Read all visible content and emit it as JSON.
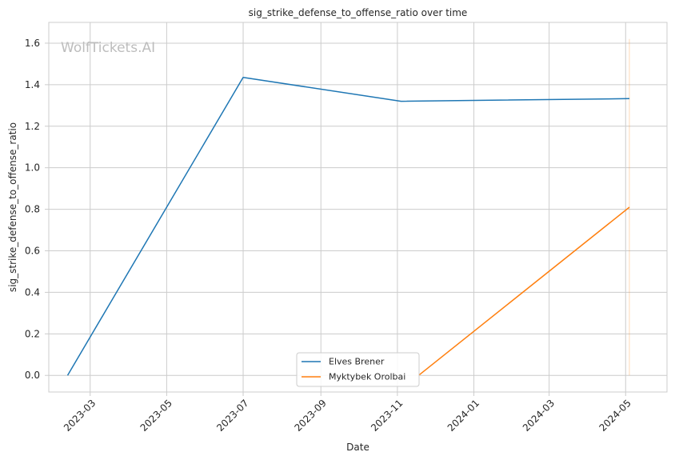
{
  "chart_data": {
    "type": "line",
    "title": "sig_strike_defense_to_offense_ratio over time",
    "xlabel": "Date",
    "ylabel": "sig_strike_defense_to_offense_ratio",
    "watermark": "WolfTickets.AI",
    "x_ticks": [
      "2023-03",
      "2023-05",
      "2023-07",
      "2023-09",
      "2023-11",
      "2024-01",
      "2024-03",
      "2024-05"
    ],
    "y_ticks": [
      "0.0",
      "0.2",
      "0.4",
      "0.6",
      "0.8",
      "1.0",
      "1.2",
      "1.4",
      "1.6"
    ],
    "xlim": [
      "2023-01-27",
      "2024-06-03"
    ],
    "ylim": [
      -0.08,
      1.7
    ],
    "grid": true,
    "legend_position": "bottom-center",
    "series": [
      {
        "name": "Elves Brener",
        "color": "#1f77b4",
        "points": [
          {
            "date": "2023-02-11",
            "value": 0.0
          },
          {
            "date": "2023-07-01",
            "value": 1.435
          },
          {
            "date": "2023-11-04",
            "value": 1.32
          },
          {
            "date": "2024-05-04",
            "value": 1.333
          }
        ]
      },
      {
        "name": "Myktybek Orolbai",
        "color": "#ff7f0e",
        "points": [
          {
            "date": "2023-11-18",
            "value": 0.0
          },
          {
            "date": "2024-05-04",
            "value": 0.81
          }
        ]
      }
    ],
    "annotations": [
      {
        "type": "vline",
        "date": "2024-05-04",
        "y_from": 0.0,
        "y_to": 1.62,
        "color": "#ff7f0e"
      }
    ]
  }
}
